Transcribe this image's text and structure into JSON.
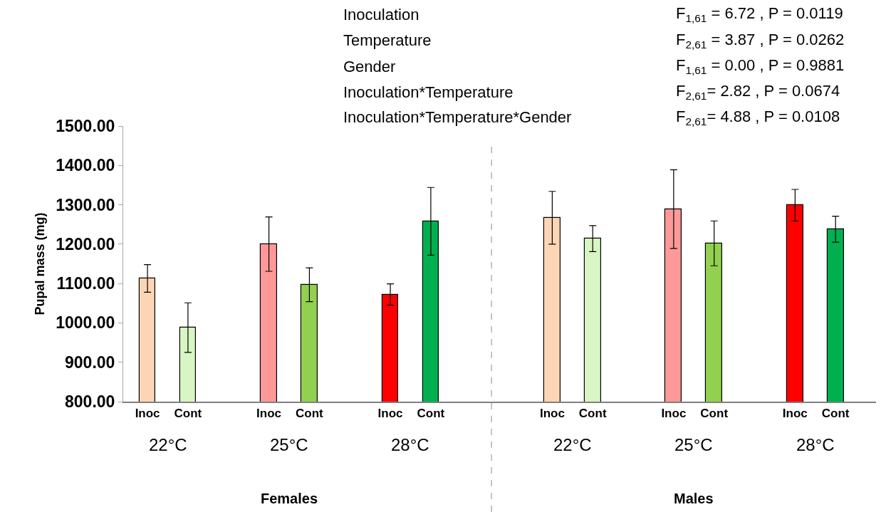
{
  "chart_data": {
    "type": "bar",
    "ylabel": "Pupal mass (mg)",
    "categories": [
      "Inoc",
      "Cont",
      "Inoc",
      "Cont",
      "Inoc",
      "Cont",
      "Inoc",
      "Cont",
      "Inoc",
      "Cont",
      "Inoc",
      "Cont"
    ],
    "values": [
      1113,
      988,
      1200,
      1097,
      1072,
      1258,
      1267,
      1214,
      1289,
      1202,
      1299,
      1238
    ],
    "errors": [
      35,
      63,
      69,
      43,
      27,
      86,
      67,
      33,
      100,
      57,
      40,
      33
    ],
    "colors": [
      "#fbd5b5",
      "#d8f5c4",
      "#ff9999",
      "#92d050",
      "#ff0000",
      "#00b050",
      "#fbd5b5",
      "#d8f5c4",
      "#ff9999",
      "#92d050",
      "#ff0000",
      "#00b050"
    ],
    "ylim": [
      800,
      1500
    ],
    "yticks": [
      {
        "value": 800,
        "label": "800.00"
      },
      {
        "value": 900,
        "label": "900.00"
      },
      {
        "value": 1000,
        "label": "1000.00"
      },
      {
        "value": 1100,
        "label": "1100.00"
      },
      {
        "value": 1200,
        "label": "1200.00"
      },
      {
        "value": 1300,
        "label": "1300.00"
      },
      {
        "value": 1400,
        "label": "1400.00"
      },
      {
        "value": 1500,
        "label": "1500.00"
      }
    ],
    "annotations": [
      "Inoculation",
      "F$_{1,61}$ = 6.72 , P = 0.0119",
      "Temperature",
      "F$_{2,61}$ = 3.87 , P = 0.0262",
      "Gender",
      "F$_{1,61}$ = 0.00 , P = 0.9881",
      "Inoculation*Temperature",
      "F$_{2,61}$= 2.82 , P = 0.0674",
      "Inoculation*Temperature*Gender",
      "F$_{2,61}$= 4.88 , P = 0.0108",
      "22°C",
      "25°C",
      "28°C",
      "22°C",
      "25°C",
      "28°C",
      "Females",
      "Males"
    ]
  }
}
